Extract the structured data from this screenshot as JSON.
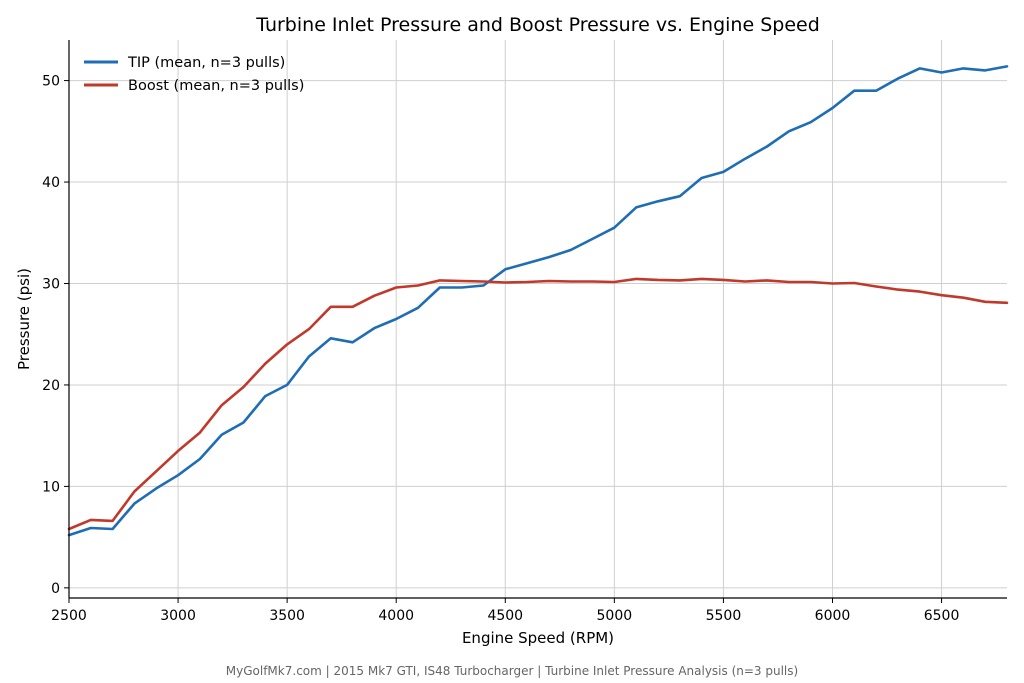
{
  "chart_data": {
    "type": "line",
    "title": "Turbine Inlet Pressure and Boost Pressure vs. Engine Speed",
    "xlabel": "Engine Speed (RPM)",
    "ylabel": "Pressure (psi)",
    "xlim": [
      2500,
      6800
    ],
    "ylim": [
      -1,
      54
    ],
    "xticks": [
      2500,
      3000,
      3500,
      4000,
      4500,
      5000,
      5500,
      6000,
      6500
    ],
    "yticks": [
      0,
      10,
      20,
      30,
      40,
      50
    ],
    "grid": true,
    "legend_position": "top-left",
    "x": [
      2500,
      2600,
      2700,
      2800,
      2900,
      3000,
      3100,
      3200,
      3300,
      3400,
      3500,
      3600,
      3700,
      3800,
      3900,
      4000,
      4100,
      4200,
      4300,
      4400,
      4500,
      4600,
      4700,
      4800,
      4900,
      5000,
      5100,
      5200,
      5300,
      5400,
      5500,
      5600,
      5700,
      5800,
      5900,
      6000,
      6100,
      6200,
      6300,
      6400,
      6500,
      6600,
      6700,
      6800
    ],
    "series": [
      {
        "name": "TIP (mean, n=3 pulls)",
        "color": "#1f6db5",
        "values": [
          5.2,
          5.9,
          5.8,
          8.3,
          9.8,
          11.1,
          12.7,
          15.1,
          16.3,
          18.9,
          20.0,
          22.8,
          24.6,
          24.2,
          25.6,
          26.5,
          27.6,
          29.6,
          29.6,
          29.8,
          31.4,
          32.0,
          32.6,
          33.3,
          34.4,
          35.5,
          37.5,
          38.1,
          38.6,
          40.4,
          41.0,
          42.3,
          43.5,
          45.0,
          45.9,
          47.3,
          49.0,
          49.0,
          50.2,
          51.2,
          50.8,
          51.2,
          51.0,
          51.4
        ]
      },
      {
        "name": "Boost (mean, n=3 pulls)",
        "color": "#c0392b",
        "values": [
          5.8,
          6.7,
          6.6,
          9.5,
          11.5,
          13.5,
          15.3,
          18.0,
          19.8,
          22.1,
          24.0,
          25.5,
          27.7,
          27.7,
          28.8,
          29.6,
          29.8,
          30.3,
          30.25,
          30.2,
          30.1,
          30.15,
          30.25,
          30.2,
          30.2,
          30.15,
          30.45,
          30.35,
          30.3,
          30.45,
          30.35,
          30.2,
          30.3,
          30.15,
          30.15,
          30.0,
          30.05,
          29.7,
          29.4,
          29.2,
          28.85,
          28.6,
          28.2,
          28.1
        ]
      }
    ]
  },
  "footer": "MyGolfMk7.com | 2015 Mk7 GTI, IS48 Turbocharger | Turbine Inlet Pressure Analysis (n=3 pulls)"
}
